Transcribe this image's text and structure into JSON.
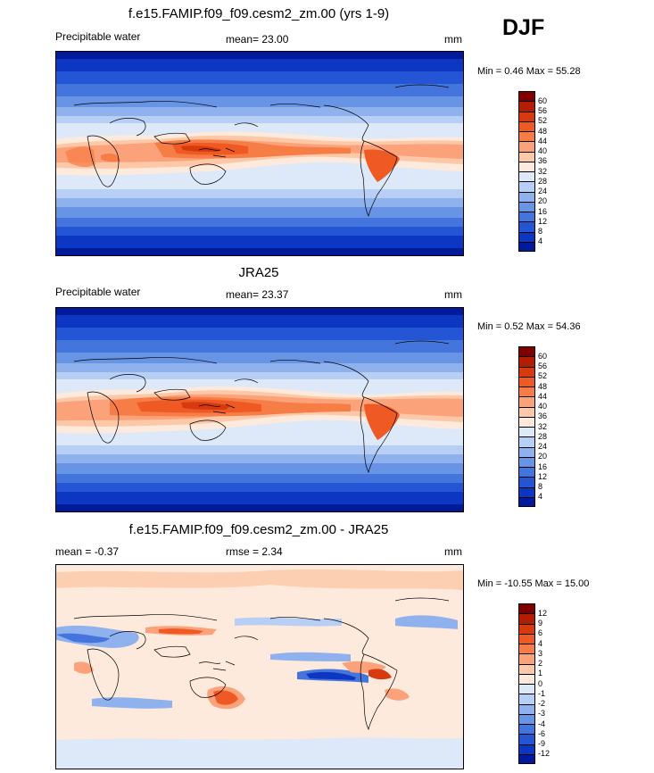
{
  "season_label": "DJF",
  "panels": [
    {
      "title": "f.e15.FAMIP.f09_f09.cesm2_zm.00 (yrs 1-9)",
      "left_label": "Precipitable water",
      "center_label": "mean=  23.00",
      "units": "mm",
      "minmax": "Min =   0.46 Max =  55.28",
      "colorbar": {
        "ticks": [
          "60",
          "56",
          "52",
          "48",
          "44",
          "40",
          "36",
          "32",
          "28",
          "24",
          "20",
          "16",
          "12",
          "8",
          "4"
        ],
        "colors": [
          "#800000",
          "#b11e04",
          "#d83a0f",
          "#ef5a24",
          "#f77d47",
          "#fba27a",
          "#fdc8a8",
          "#feeadd",
          "#dde8f8",
          "#b8cff5",
          "#8fb2ee",
          "#6894e6",
          "#4475dc",
          "#2455d4",
          "#0d37c2",
          "#001a99"
        ]
      }
    },
    {
      "title": "JRA25",
      "left_label": "Precipitable water",
      "center_label": "mean=  23.37",
      "units": "mm",
      "minmax": "Min =   0.52 Max =  54.36",
      "colorbar": {
        "ticks": [
          "60",
          "56",
          "52",
          "48",
          "44",
          "40",
          "36",
          "32",
          "28",
          "24",
          "20",
          "16",
          "12",
          "8",
          "4"
        ],
        "colors": [
          "#800000",
          "#b11e04",
          "#d83a0f",
          "#ef5a24",
          "#f77d47",
          "#fba27a",
          "#fdc8a8",
          "#feeadd",
          "#dde8f8",
          "#b8cff5",
          "#8fb2ee",
          "#6894e6",
          "#4475dc",
          "#2455d4",
          "#0d37c2",
          "#001a99"
        ]
      }
    },
    {
      "title": "f.e15.FAMIP.f09_f09.cesm2_zm.00 - JRA25",
      "left_label": "mean =  -0.37",
      "center_label": "rmse =   2.34",
      "units": "mm",
      "minmax": "Min = -10.55 Max =  15.00",
      "colorbar": {
        "ticks": [
          "12",
          "9",
          "6",
          "4",
          "3",
          "2",
          "1",
          "0",
          "-1",
          "-2",
          "-3",
          "-4",
          "-6",
          "-9",
          "-12"
        ],
        "colors": [
          "#800000",
          "#b11e04",
          "#d83a0f",
          "#ef5a24",
          "#f77d47",
          "#fba27a",
          "#fdc8a8",
          "#feeadd",
          "#dde8f8",
          "#b8cff5",
          "#8fb2ee",
          "#6894e6",
          "#4475dc",
          "#2455d4",
          "#0d37c2",
          "#001a99"
        ]
      }
    }
  ]
}
